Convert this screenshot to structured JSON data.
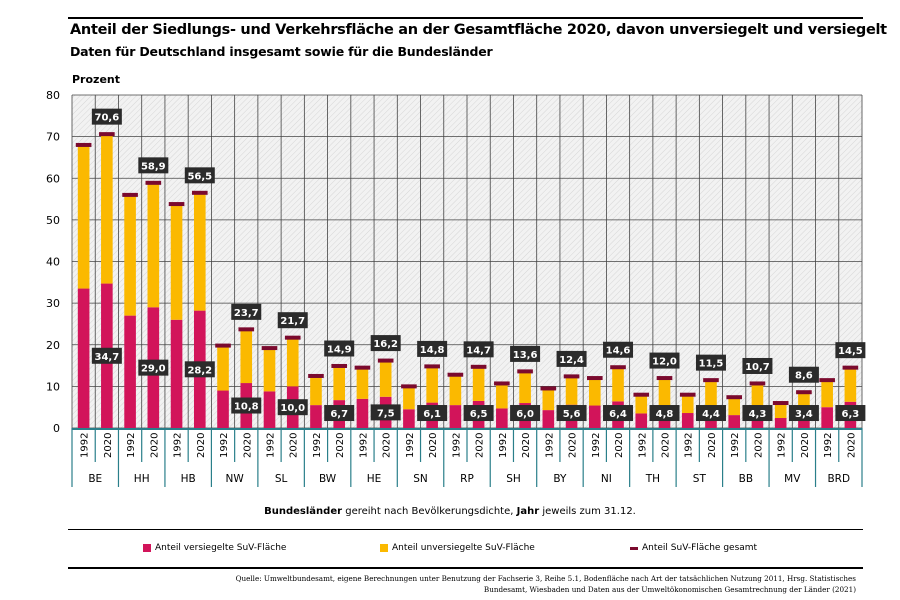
{
  "title": "Anteil der Siedlungs- und Verkehrsfläche an der Gesamtfläche 2020, davon unversiegelt und versiegelt",
  "subtitle": "Daten für Deutschland insgesamt sowie für die Bundesländer",
  "colors": {
    "sealed": "#d2145a",
    "unsealed": "#fbb900",
    "total": "#7b0a2e",
    "label_bg": "#2b2b2b",
    "axis": "#2a7f8a"
  },
  "chart_data": {
    "type": "bar",
    "stacked": true,
    "title": "Anteil der Siedlungs- und Verkehrsfläche an der Gesamtfläche 2020, davon unversiegelt und versiegelt",
    "ylabel": "Prozent",
    "ylim": [
      0,
      80
    ],
    "yticks": [
      "0",
      "10",
      "20",
      "30",
      "40",
      "50",
      "60",
      "70",
      "80"
    ],
    "grid": true,
    "xlabel_strong_1": "Bundesländer",
    "xlabel_mid": " gereiht nach Bevölkerungsdichte, ",
    "xlabel_strong_2": "Jahr",
    "xlabel_end": " jeweils zum 31.12.",
    "years": [
      "1992",
      "2020"
    ],
    "groups": [
      "BE",
      "HH",
      "HB",
      "NW",
      "SL",
      "BW",
      "HE",
      "SN",
      "RP",
      "SH",
      "BY",
      "NI",
      "TH",
      "ST",
      "BB",
      "MV",
      "BRD"
    ],
    "sealed": [
      [
        33.5,
        34.7
      ],
      [
        27.0,
        29.0
      ],
      [
        26.0,
        28.2
      ],
      [
        9.0,
        10.8
      ],
      [
        8.8,
        10.0
      ],
      [
        5.5,
        6.7
      ],
      [
        7.0,
        7.5
      ],
      [
        4.5,
        6.1
      ],
      [
        5.5,
        6.5
      ],
      [
        4.7,
        6.0
      ],
      [
        4.3,
        5.6
      ],
      [
        5.4,
        6.4
      ],
      [
        3.5,
        4.8
      ],
      [
        3.6,
        4.4
      ],
      [
        3.1,
        4.3
      ],
      [
        2.4,
        3.4
      ],
      [
        5.0,
        6.3
      ]
    ],
    "total": [
      [
        68.0,
        70.6
      ],
      [
        56.0,
        58.9
      ],
      [
        53.8,
        56.5
      ],
      [
        19.8,
        23.7
      ],
      [
        19.2,
        21.7
      ],
      [
        12.5,
        14.9
      ],
      [
        14.5,
        16.2
      ],
      [
        10.0,
        14.8
      ],
      [
        12.8,
        14.7
      ],
      [
        10.7,
        13.6
      ],
      [
        9.5,
        12.4
      ],
      [
        12.0,
        14.6
      ],
      [
        8.0,
        12.0
      ],
      [
        8.0,
        11.5
      ],
      [
        7.4,
        10.7
      ],
      [
        6.0,
        8.6
      ],
      [
        11.5,
        14.5
      ]
    ],
    "labels_total_2020": [
      "70,6",
      "58,9",
      "56,5",
      "23,7",
      "21,7",
      "14,9",
      "16,2",
      "14,8",
      "14,7",
      "13,6",
      "12,4",
      "14,6",
      "12,0",
      "11,5",
      "10,7",
      "8,6",
      "14,5"
    ],
    "labels_sealed_2020": [
      "34,7",
      "29,0",
      "28,2",
      "10,8",
      "10,0",
      "6,7",
      "7,5",
      "6,1",
      "6,5",
      "6,0",
      "5,6",
      "6,4",
      "4,8",
      "4,4",
      "4,3",
      "3,4",
      "6,3"
    ],
    "legend": [
      "Anteil versiegelte SuV-Fläche",
      "Anteil unversiegelte SuV-Fläche",
      "Anteil SuV-Fläche gesamt"
    ],
    "legend_position": "bottom"
  },
  "source": "Quelle: Umweltbundesamt, eigene Berechnungen unter Benutzung der Fachserie 3, Reihe 5.1, Bodenfläche nach Art der tatsächlichen Nutzung 2011, Hrsg. Statistisches Bundesamt, Wiesbaden und Daten aus der Umweltökonomischen Gesamtrechnung der Länder (2021)"
}
